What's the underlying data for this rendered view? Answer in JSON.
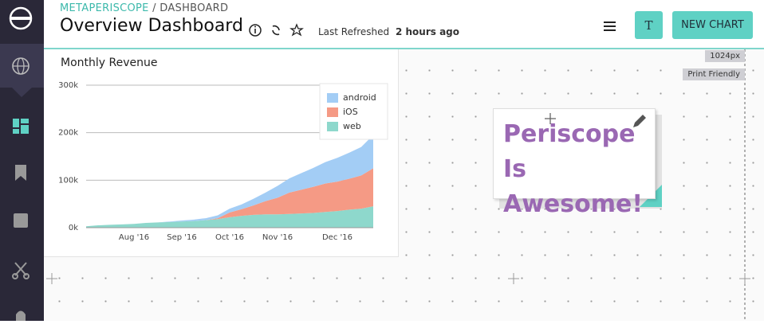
{
  "header": {
    "org": "METAPERISCOPE",
    "section": "/ DASHBOARD",
    "title": "Overview Dashboard",
    "refreshed_label": "Last Refreshed",
    "refreshed_value": "2 hours ago",
    "user_button": "T",
    "new_chart_button": "NEW CHART"
  },
  "canvas": {
    "width_tag": "1024px",
    "print_tag": "Print Friendly"
  },
  "text_widget": {
    "text": "Periscope Is Awesome!"
  },
  "chart_data": {
    "type": "stacked-area",
    "title": "Monthly Revenue",
    "categories": [
      null,
      null,
      null,
      null,
      "Aug '16",
      null,
      null,
      null,
      "Sep '16",
      null,
      null,
      null,
      "Oct '16",
      null,
      null,
      null,
      "Nov '16",
      null,
      null,
      null,
      null,
      "Dec '16",
      null,
      null,
      null
    ],
    "series": [
      {
        "name": "web",
        "color": "#8ed8cc",
        "values": [
          3000,
          5000,
          6000,
          7000,
          8000,
          10000,
          11000,
          12000,
          13000,
          14000,
          16000,
          18000,
          22000,
          25000,
          27000,
          28000,
          28000,
          29000,
          30000,
          31000,
          33000,
          35000,
          38000,
          40000,
          45000
        ]
      },
      {
        "name": "iOS",
        "color": "#f59a85",
        "values": [
          0,
          0,
          0,
          0,
          0,
          0,
          0,
          0,
          0,
          0,
          0,
          2000,
          10000,
          14000,
          20000,
          28000,
          35000,
          45000,
          50000,
          55000,
          60000,
          62000,
          65000,
          70000,
          80000
        ]
      },
      {
        "name": "android",
        "color": "#a3cdf5",
        "values": [
          0,
          0,
          0,
          0,
          0,
          0,
          0,
          1000,
          2000,
          3000,
          4000,
          6000,
          8000,
          10000,
          14000,
          18000,
          25000,
          30000,
          35000,
          40000,
          45000,
          50000,
          55000,
          60000,
          70000
        ]
      }
    ],
    "ylim": [
      0,
      300000
    ],
    "yticks": [
      {
        "value": 0,
        "label": "0k"
      },
      {
        "value": 100000,
        "label": "100k"
      },
      {
        "value": 200000,
        "label": "200k"
      },
      {
        "value": 300000,
        "label": "300k"
      }
    ],
    "grid": true,
    "legend": "top-right"
  }
}
